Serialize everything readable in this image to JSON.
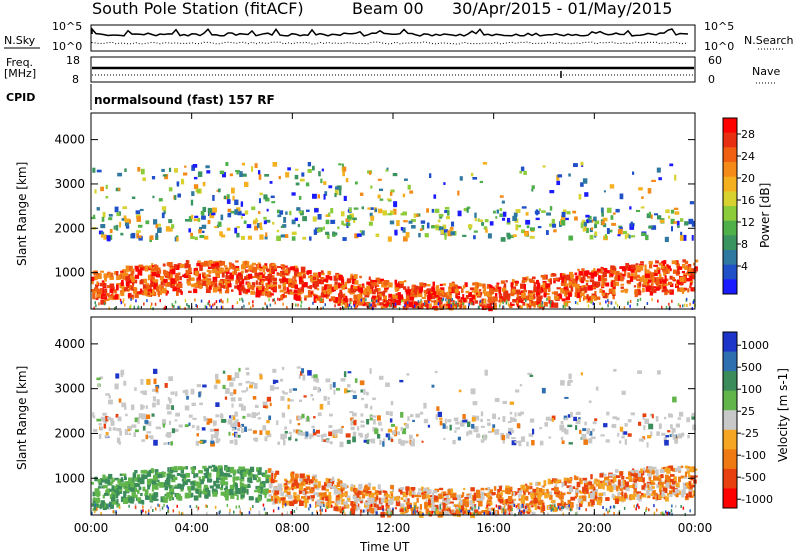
{
  "header": {
    "station": "South Pole Station (fitACF)",
    "beam": "Beam 00",
    "date_range": "30/Apr/2015 - 01/May/2015"
  },
  "top_panels": {
    "nsky_label": "N.Sky",
    "nsearch_label": "N.Search",
    "noise_ticks": [
      "10^5",
      "10^0"
    ],
    "freq_label": "Freq.",
    "freq_unit": "[MHz]",
    "freq_ticks": [
      "18",
      "8"
    ],
    "nave_label": "Nave",
    "nave_ticks": [
      "60",
      "0"
    ],
    "cpid_label": "CPID",
    "cpid_value": "normalsound (fast) 157 RF"
  },
  "chart_data": [
    {
      "type": "heatmap",
      "name": "power",
      "ylabel": "Slant Range [km]",
      "xlabel": "",
      "x_ticks": [
        "00:00",
        "04:00",
        "08:00",
        "12:00",
        "16:00",
        "20:00",
        "00:00"
      ],
      "x_range_hours": [
        0,
        24
      ],
      "y_ticks": [
        1000,
        2000,
        3000,
        4000
      ],
      "ylim": [
        180,
        4600
      ],
      "colorbar": {
        "label": "Power [dB]",
        "ticks": [
          "28",
          "24",
          "20",
          "16",
          "12",
          "8",
          "4"
        ],
        "range": [
          0,
          32
        ],
        "colors": [
          "#1b1bff",
          "#2050c8",
          "#2f78a0",
          "#3a9460",
          "#4fb049",
          "#8ccb3a",
          "#d8d230",
          "#f5b020",
          "#f48a18",
          "#f06010",
          "#e83010",
          "#ff0000"
        ]
      }
    },
    {
      "type": "heatmap",
      "name": "velocity",
      "ylabel": "Slant Range [km]",
      "xlabel": "Time UT",
      "x_ticks": [
        "00:00",
        "04:00",
        "08:00",
        "12:00",
        "16:00",
        "20:00",
        "00:00"
      ],
      "x_range_hours": [
        0,
        24
      ],
      "y_ticks": [
        1000,
        2000,
        3000,
        4000
      ],
      "ylim": [
        180,
        4600
      ],
      "colorbar": {
        "label": "Velocity [m s-1]",
        "ticks": [
          "1000",
          "500",
          "100",
          "25",
          "-25",
          "-100",
          "-500",
          "-1000"
        ],
        "colors": [
          "#1d35c8",
          "#2e6fb0",
          "#3b8c5a",
          "#62b54a",
          "#c8c8c8",
          "#f5a623",
          "#f07a12",
          "#e8400e",
          "#ff0000"
        ]
      }
    }
  ]
}
